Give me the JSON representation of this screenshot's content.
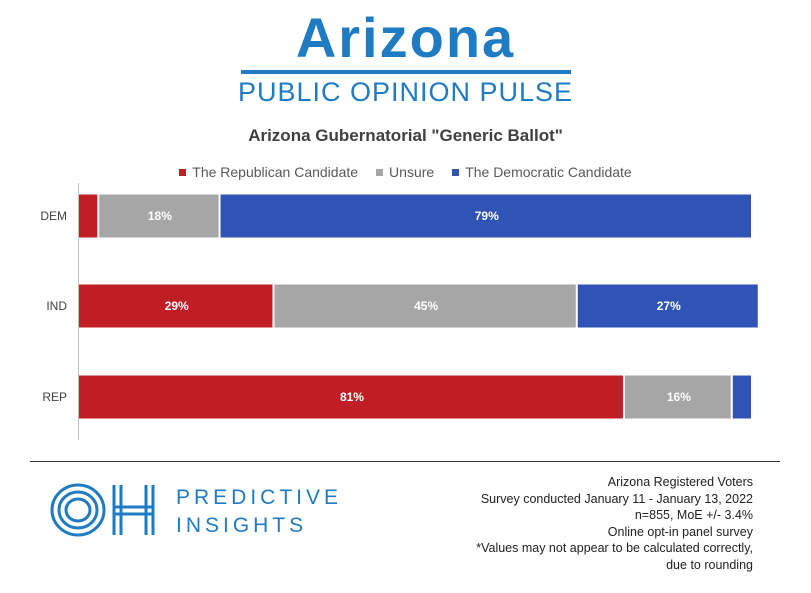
{
  "brand": {
    "title": "Arizona",
    "subtitle": "PUBLIC OPINION PULSE"
  },
  "colors": {
    "republican": "#c01d24",
    "unsure": "#a6a6a6",
    "democratic": "#2f54b5",
    "brand": "#1e7bc4"
  },
  "chart_data": {
    "type": "bar",
    "orientation": "horizontal",
    "stacked": true,
    "title": "Arizona Gubernatorial \"Generic Ballot\"",
    "categories": [
      "DEM",
      "IND",
      "REP"
    ],
    "series": [
      {
        "name": "The Republican Candidate",
        "values": [
          3,
          29,
          81
        ],
        "labels": [
          "",
          "29%",
          "81%"
        ]
      },
      {
        "name": "Unsure",
        "values": [
          18,
          45,
          16
        ],
        "labels": [
          "18%",
          "45%",
          "16%"
        ]
      },
      {
        "name": "The Democratic Candidate",
        "values": [
          79,
          27,
          3
        ],
        "labels": [
          "79%",
          "27%",
          ""
        ]
      }
    ],
    "xlim": [
      0,
      100
    ],
    "legend_position": "top-center",
    "grid": false
  },
  "footer": {
    "logo_line1": "PREDICTIVE",
    "logo_line2": "INSIGHTS",
    "notes": [
      "Arizona Registered Voters",
      "Survey conducted January 11 - January 13, 2022",
      "n=855, MoE +/- 3.4%",
      "Online opt-in panel survey",
      "*Values may not appear to be calculated correctly,",
      "due to rounding"
    ]
  }
}
